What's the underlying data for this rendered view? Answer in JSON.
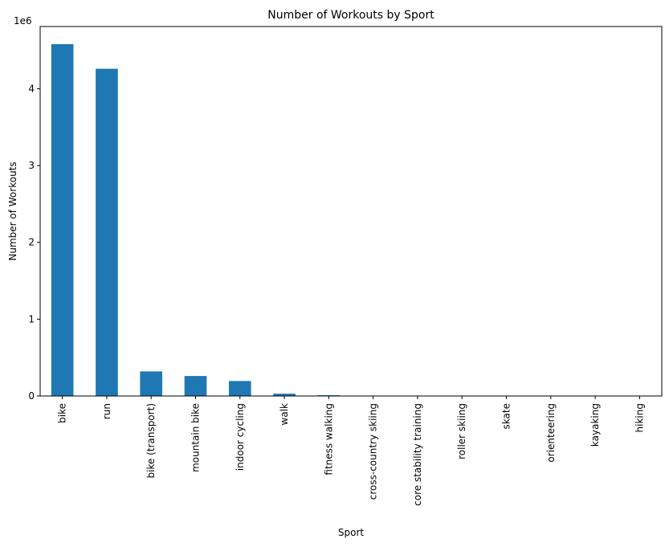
{
  "chart_data": {
    "type": "bar",
    "title": "Number of Workouts by Sport",
    "xlabel": "Sport",
    "ylabel": "Number of Workouts",
    "offset_label": "1e6",
    "y_multiplier": 1000000,
    "categories": [
      "bike",
      "run",
      "bike (transport)",
      "mountain bike",
      "indoor cycling",
      "walk",
      "fitness walking",
      "cross-country skiing",
      "core stability training",
      "roller skiing",
      "skate",
      "orienteering",
      "kayaking",
      "hiking"
    ],
    "values": [
      4580000,
      4260000,
      320000,
      260000,
      195000,
      30000,
      10000,
      3000,
      2000,
      1500,
      1000,
      800,
      500,
      300
    ],
    "yticks": [
      0,
      1,
      2,
      3,
      4
    ],
    "ylim": [
      0,
      4.81
    ],
    "grid": false,
    "legend": "none",
    "bar_color": "#1f77b4"
  }
}
